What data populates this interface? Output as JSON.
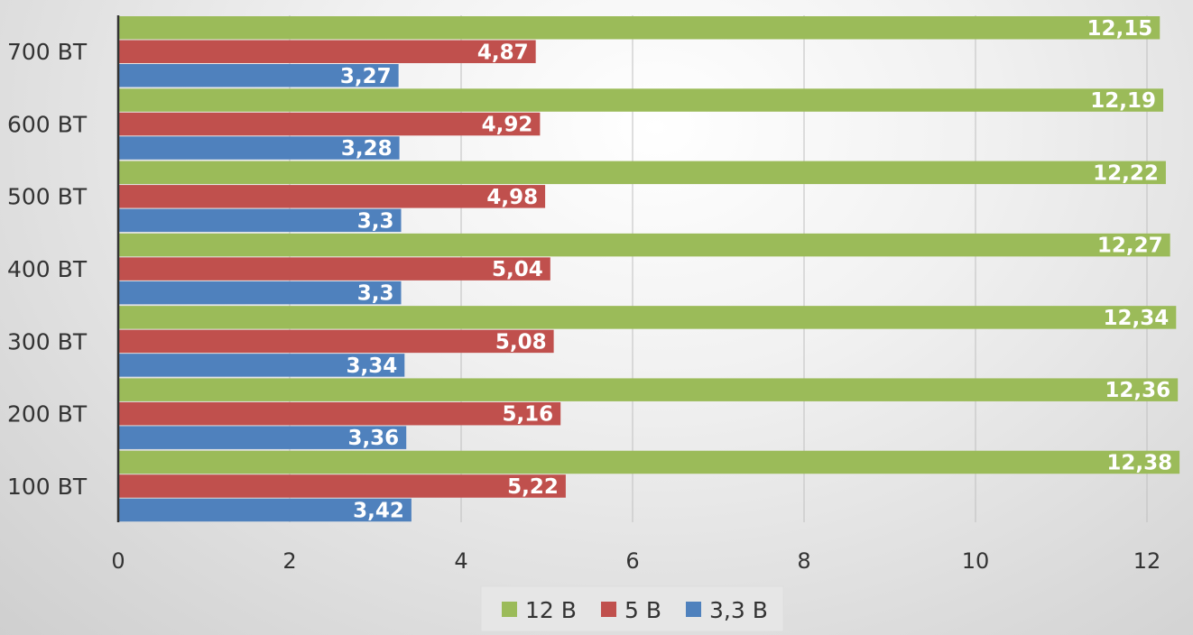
{
  "chart_data": {
    "type": "bar",
    "orientation": "horizontal",
    "title": "",
    "xlabel": "",
    "ylabel": "",
    "categories": [
      "700 ВТ",
      "600 ВТ",
      "500 ВТ",
      "400 ВТ",
      "300 ВТ",
      "200 ВТ",
      "100 ВТ"
    ],
    "series": [
      {
        "name": "12 В",
        "color": "#9bbb59",
        "values": [
          12.15,
          12.19,
          12.22,
          12.27,
          12.34,
          12.36,
          12.38
        ],
        "labels": [
          "12,15",
          "12,19",
          "12,22",
          "12,27",
          "12,34",
          "12,36",
          "12,38"
        ]
      },
      {
        "name": "5 В",
        "color": "#c0504d",
        "values": [
          4.87,
          4.92,
          4.98,
          5.04,
          5.08,
          5.16,
          5.22
        ],
        "labels": [
          "4,87",
          "4,92",
          "4,98",
          "5,04",
          "5,08",
          "5,16",
          "5,22"
        ]
      },
      {
        "name": "3,3 В",
        "color": "#4f81bd",
        "values": [
          3.27,
          3.28,
          3.3,
          3.3,
          3.34,
          3.36,
          3.42
        ],
        "labels": [
          "3,27",
          "3,28",
          "3,3",
          "3,3",
          "3,34",
          "3,36",
          "3,42"
        ]
      }
    ],
    "xlim": [
      0,
      12
    ],
    "xticks": [
      0,
      2,
      4,
      6,
      8,
      10,
      12
    ],
    "xtick_labels": [
      "0",
      "2",
      "4",
      "6",
      "8",
      "10",
      "12"
    ],
    "grid": "vertical",
    "data_labels": "inside-end",
    "legend": {
      "position": "bottom",
      "entries": [
        "12 В",
        "5 В",
        "3,3 В"
      ]
    }
  }
}
